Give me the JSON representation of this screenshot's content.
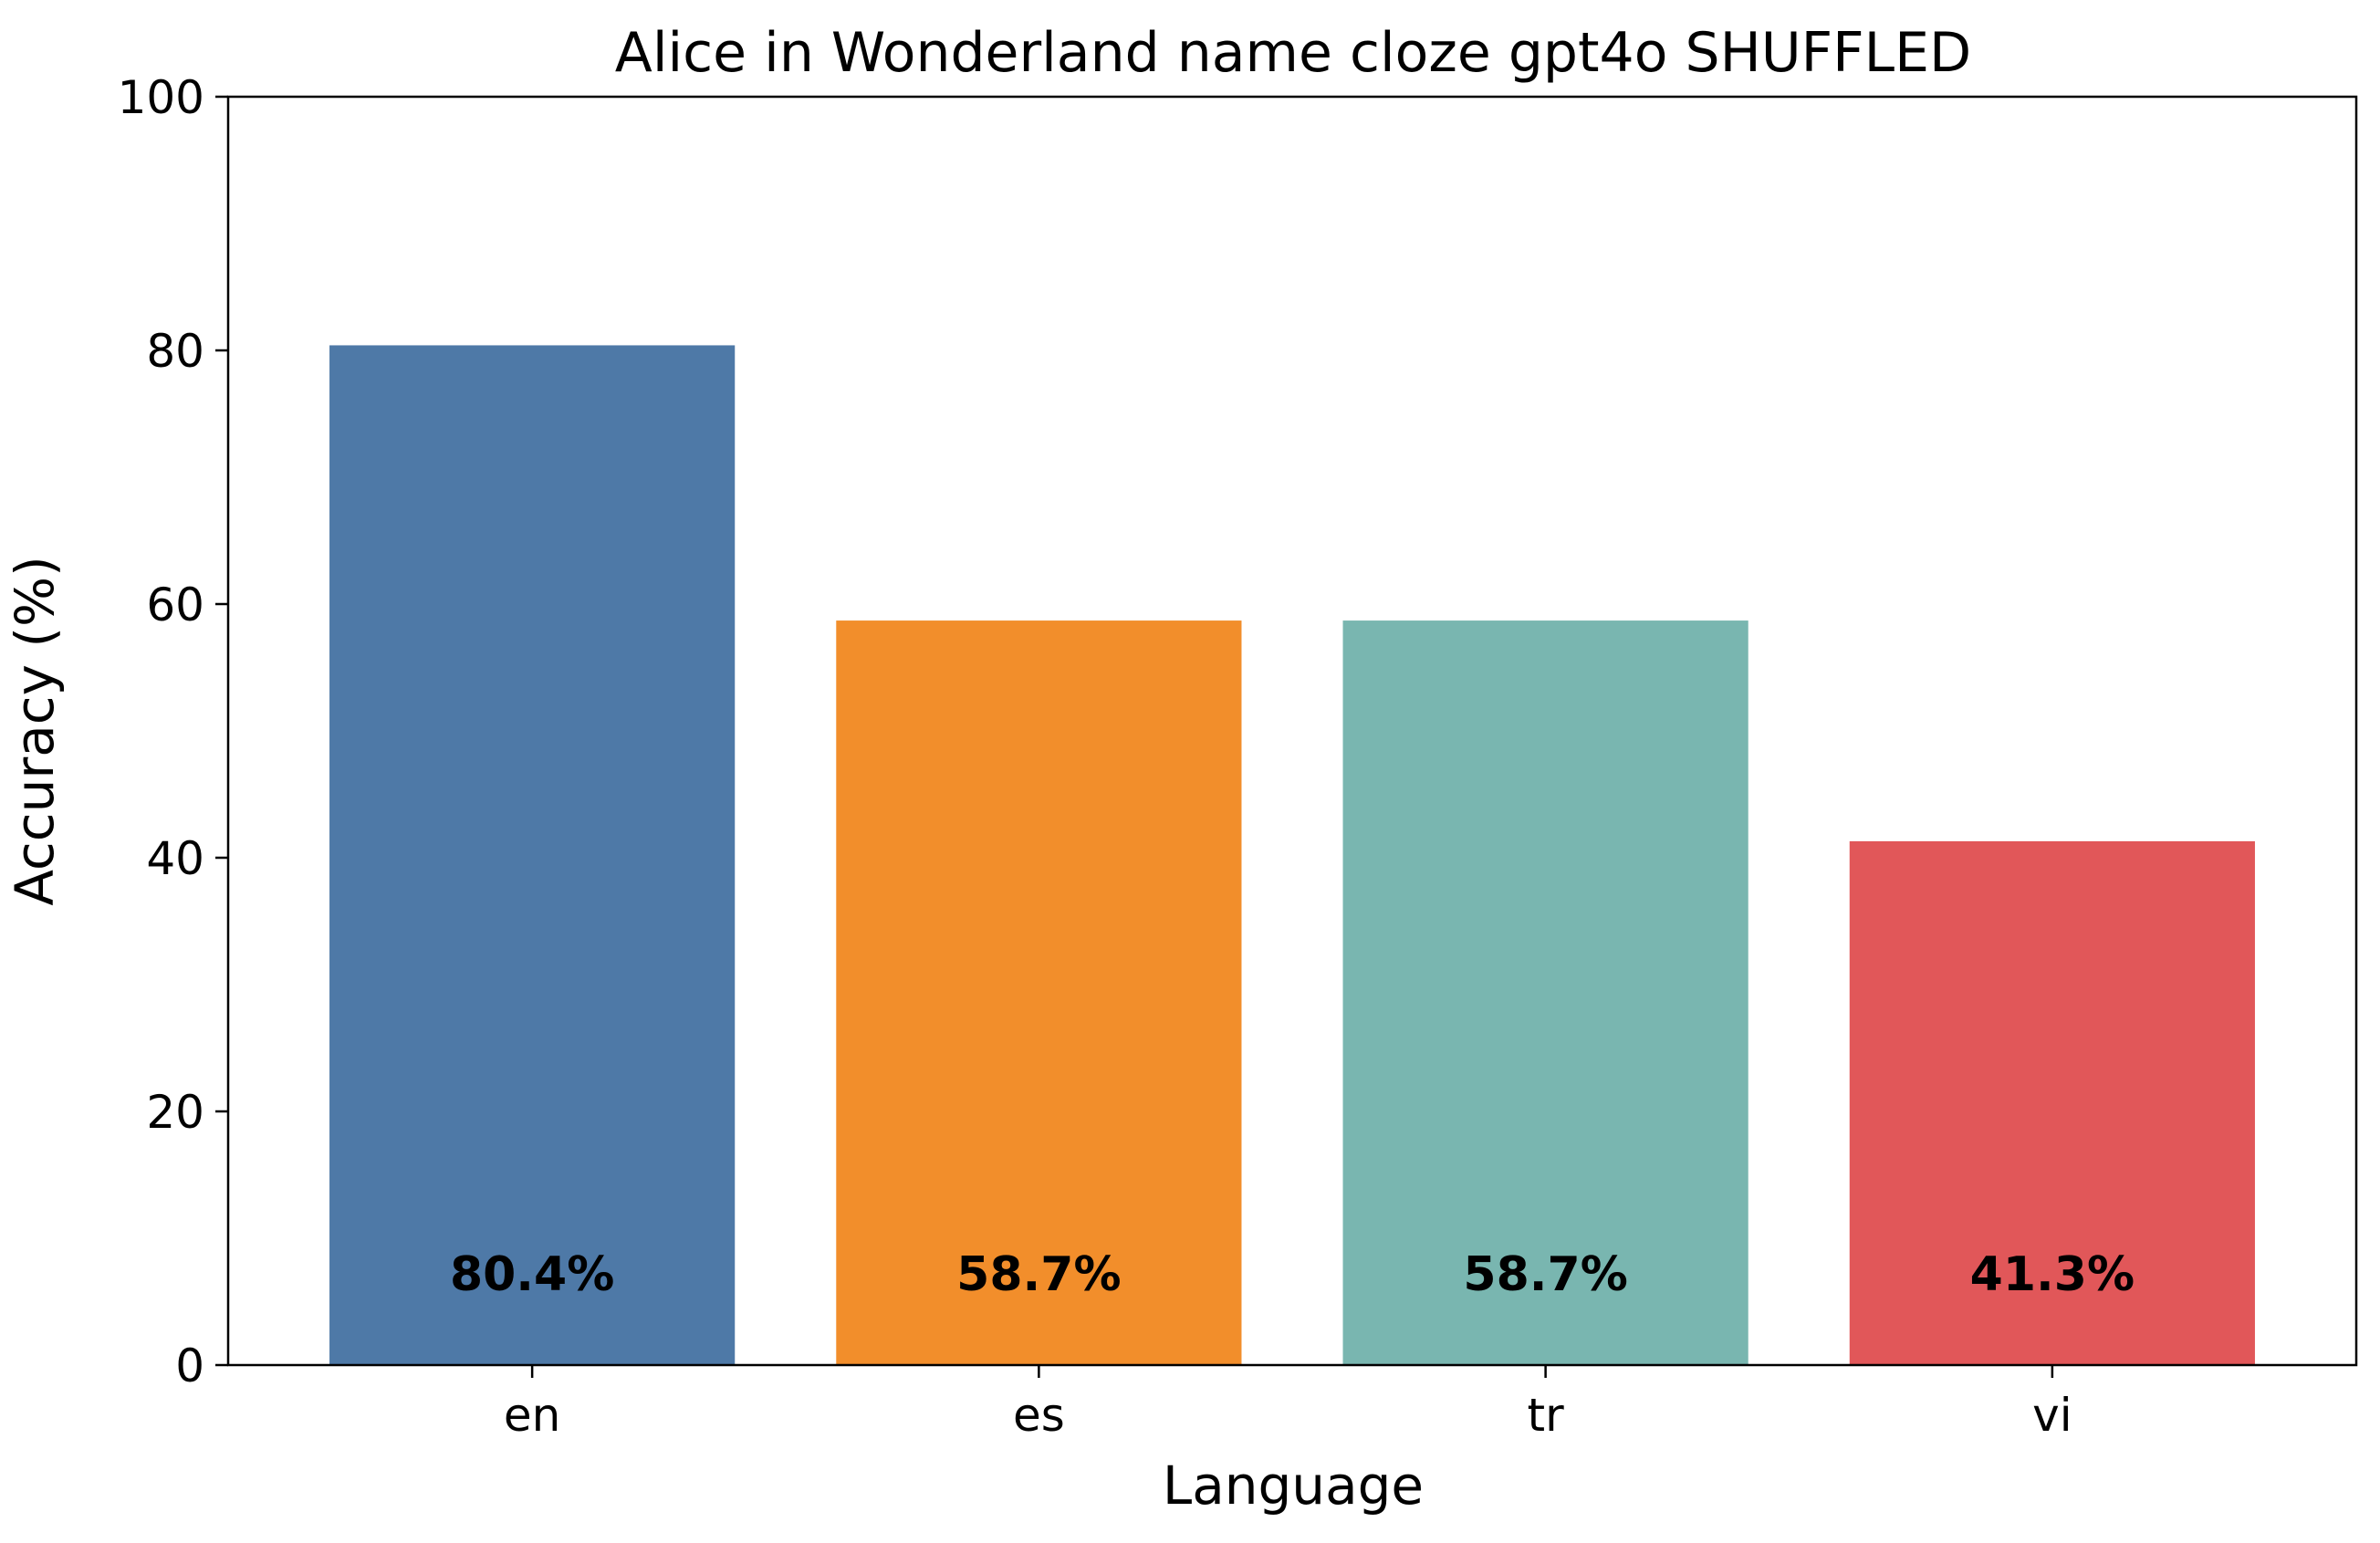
{
  "chart_data": {
    "type": "bar",
    "title": "Alice in Wonderland name cloze gpt4o SHUFFLED",
    "xlabel": "Language",
    "ylabel": "Accuracy (%)",
    "categories": [
      "en",
      "es",
      "tr",
      "vi"
    ],
    "values": [
      80.4,
      58.7,
      58.7,
      41.3
    ],
    "data_labels": [
      "80.4%",
      "58.7%",
      "58.7%",
      "41.3%"
    ],
    "colors": [
      "#4e79a7",
      "#f28e2b",
      "#79b6b0",
      "#e15759"
    ],
    "ylim": [
      0,
      100
    ],
    "yticks": [
      0,
      20,
      40,
      60,
      80,
      100
    ],
    "grid": false,
    "legend": "none"
  }
}
